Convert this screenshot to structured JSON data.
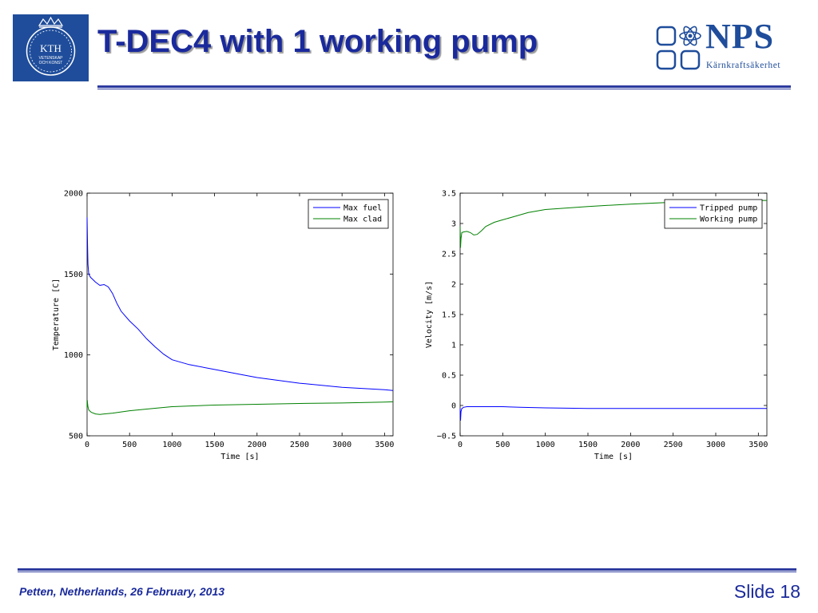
{
  "slide": {
    "title": "T-DEC4 with 1 working pump",
    "footer_left": "Petten, Netherlands, 26 February, 2013",
    "footer_right": "Slide 18"
  },
  "logos": {
    "kth": {
      "text_main": "KTH",
      "text_line2": "VETENSKAP",
      "text_line3": "OCH KONST",
      "color": "#1f4d9b"
    },
    "nps": {
      "name": "NPS",
      "subtitle": "Kärnkraftsäkerhet",
      "color": "#1f4d9b"
    }
  },
  "colors": {
    "title": "#1a2a9c",
    "rule": "#2c3a9e",
    "series_blue": "#0000ff",
    "series_green": "#008000"
  },
  "chart_data": [
    {
      "type": "line",
      "xlabel": "Time [s]",
      "ylabel": "Temperature [C]",
      "xlim": [
        0,
        3600
      ],
      "ylim": [
        500,
        2000
      ],
      "xticks": [
        0,
        500,
        1000,
        1500,
        2000,
        2500,
        3000,
        3500
      ],
      "yticks": [
        500,
        1000,
        1500,
        2000
      ],
      "legend_position": "top-right",
      "grid": false,
      "series": [
        {
          "name": "Max fuel",
          "color": "#0000ff",
          "x": [
            0,
            5,
            10,
            20,
            40,
            60,
            100,
            150,
            200,
            250,
            300,
            350,
            400,
            500,
            600,
            700,
            800,
            900,
            1000,
            1200,
            1500,
            1800,
            2000,
            2500,
            3000,
            3500,
            3600
          ],
          "y": [
            1850,
            1700,
            1560,
            1500,
            1480,
            1470,
            1450,
            1430,
            1435,
            1420,
            1380,
            1320,
            1270,
            1210,
            1160,
            1100,
            1050,
            1005,
            970,
            940,
            910,
            880,
            860,
            825,
            800,
            785,
            780
          ]
        },
        {
          "name": "Max clad",
          "color": "#008000",
          "x": [
            0,
            3,
            6,
            10,
            20,
            50,
            100,
            150,
            200,
            300,
            500,
            800,
            1000,
            1500,
            2000,
            2500,
            3000,
            3500,
            3600
          ],
          "y": [
            670,
            720,
            700,
            680,
            660,
            645,
            635,
            632,
            635,
            640,
            655,
            670,
            680,
            690,
            695,
            700,
            703,
            708,
            710
          ]
        }
      ]
    },
    {
      "type": "line",
      "xlabel": "Time [s]",
      "ylabel": "Velocity [m/s]",
      "xlim": [
        0,
        3600
      ],
      "ylim": [
        -0.5,
        3.5
      ],
      "xticks": [
        0,
        500,
        1000,
        1500,
        2000,
        2500,
        3000,
        3500
      ],
      "yticks": [
        -0.5,
        0,
        0.5,
        1,
        1.5,
        2,
        2.5,
        3,
        3.5
      ],
      "legend_position": "top-right",
      "grid": false,
      "series": [
        {
          "name": "Tripped pump",
          "color": "#0000ff",
          "x": [
            0,
            5,
            10,
            20,
            40,
            80,
            150,
            300,
            500,
            700,
            1000,
            1500,
            2000,
            2500,
            3000,
            3500,
            3600
          ],
          "y": [
            -0.05,
            -0.25,
            -0.1,
            -0.05,
            -0.03,
            -0.02,
            -0.02,
            -0.02,
            -0.02,
            -0.03,
            -0.04,
            -0.05,
            -0.05,
            -0.05,
            -0.05,
            -0.05,
            -0.05
          ]
        },
        {
          "name": "Working pump",
          "color": "#008000",
          "x": [
            0,
            5,
            10,
            20,
            40,
            80,
            120,
            160,
            200,
            250,
            300,
            400,
            500,
            600,
            800,
            1000,
            1500,
            2000,
            2500,
            3000,
            3500,
            3600
          ],
          "y": [
            2.95,
            2.6,
            2.75,
            2.85,
            2.86,
            2.87,
            2.85,
            2.81,
            2.82,
            2.88,
            2.95,
            3.02,
            3.06,
            3.1,
            3.18,
            3.23,
            3.28,
            3.32,
            3.35,
            3.37,
            3.38,
            3.38
          ]
        }
      ]
    }
  ]
}
